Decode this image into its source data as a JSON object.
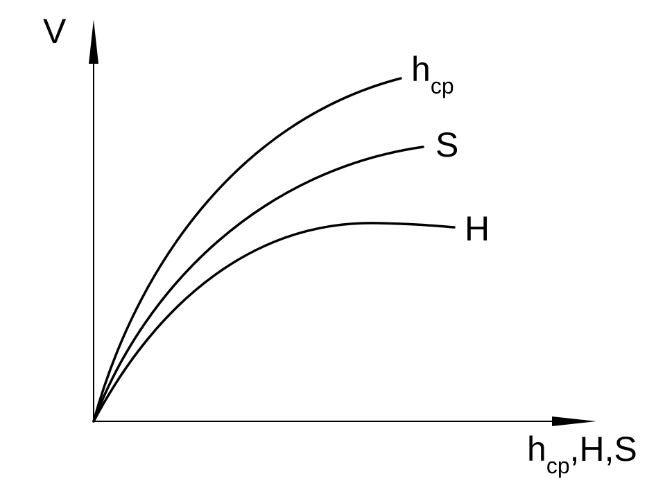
{
  "axes": {
    "y": {
      "label": "V"
    },
    "x": {
      "label_main": "h",
      "label_sub": "cp",
      "label_rest": ",H,S"
    }
  },
  "curves": [
    {
      "label_main": "h",
      "label_sub": "cp"
    },
    {
      "label_main": "S"
    },
    {
      "label_main": "H"
    }
  ]
}
